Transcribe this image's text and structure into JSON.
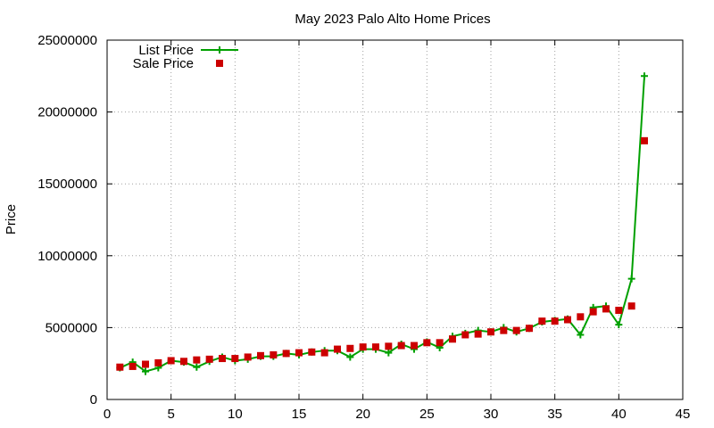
{
  "chart_data": {
    "type": "line",
    "title": "May 2023 Palo Alto Home Prices",
    "xlabel": "",
    "ylabel": "Price",
    "xlim": [
      0,
      45
    ],
    "ylim": [
      0,
      25000000
    ],
    "xticks": [
      "0",
      "5",
      "10",
      "15",
      "20",
      "25",
      "30",
      "35",
      "40",
      "45"
    ],
    "yticks": [
      "0",
      "5000000",
      "10000000",
      "15000000",
      "20000000",
      "25000000"
    ],
    "grid": true,
    "legend_position": "top-left",
    "x": [
      1,
      2,
      3,
      4,
      5,
      6,
      7,
      8,
      9,
      10,
      11,
      12,
      13,
      14,
      15,
      16,
      17,
      18,
      19,
      20,
      21,
      22,
      23,
      24,
      25,
      26,
      27,
      28,
      29,
      30,
      31,
      32,
      33,
      34,
      35,
      36,
      37,
      38,
      39,
      40,
      41,
      42
    ],
    "series": [
      {
        "name": "List Price",
        "style": "lines+crosses",
        "color": "#00a000",
        "values": [
          2200000,
          2600000,
          1950000,
          2200000,
          2700000,
          2600000,
          2250000,
          2650000,
          2950000,
          2700000,
          2800000,
          3000000,
          3000000,
          3200000,
          3100000,
          3300000,
          3400000,
          3400000,
          2950000,
          3500000,
          3500000,
          3250000,
          3850000,
          3500000,
          4000000,
          3600000,
          4400000,
          4600000,
          4800000,
          4700000,
          5000000,
          4700000,
          4950000,
          5400000,
          5500000,
          5600000,
          4500000,
          6400000,
          6500000,
          5200000,
          8400000,
          22500000
        ]
      },
      {
        "name": "Sale Price",
        "style": "squares",
        "color": "#cc0000",
        "values": [
          2250000,
          2300000,
          2450000,
          2550000,
          2700000,
          2650000,
          2750000,
          2800000,
          2850000,
          2850000,
          2950000,
          3050000,
          3100000,
          3200000,
          3250000,
          3300000,
          3250000,
          3500000,
          3550000,
          3650000,
          3650000,
          3700000,
          3750000,
          3750000,
          3950000,
          3950000,
          4200000,
          4500000,
          4550000,
          4700000,
          4800000,
          4800000,
          4950000,
          5450000,
          5450000,
          5550000,
          5750000,
          6100000,
          6300000,
          6200000,
          6500000,
          18000000
        ]
      }
    ]
  }
}
